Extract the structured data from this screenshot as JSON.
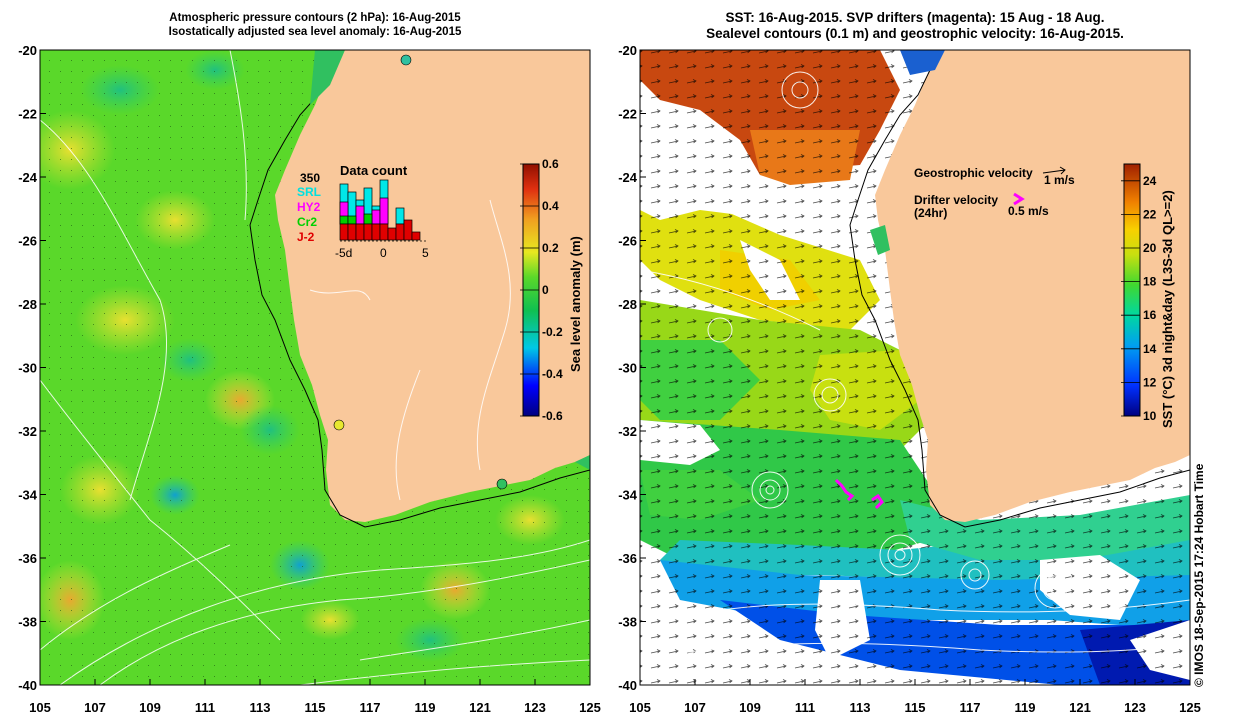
{
  "left_panel": {
    "title_line1": "Atmospheric pressure contours (2 hPa): 16-Aug-2015",
    "title_line2": "Isostatically adjusted sea level anomaly: 16-Aug-2015",
    "data_count": {
      "title": "Data count",
      "max": "350",
      "satellites": [
        "SRL",
        "HY2",
        "Cr2",
        "J-2"
      ],
      "axis_ticks": [
        "-5d",
        "0",
        "5"
      ]
    },
    "colorbar": {
      "label": "Sea level anomaly (m)",
      "ticks": [
        "0.6",
        "0.4",
        "0.2",
        "0",
        "-0.2",
        "-0.4",
        "-0.6"
      ],
      "range": [
        -0.6,
        0.6
      ]
    }
  },
  "right_panel": {
    "title_line1": "SST: 16-Aug-2015. SVP drifters (magenta): 15 Aug - 18 Aug.",
    "title_line2": "Sealevel contours (0.1 m) and geostrophic velocity: 16-Aug-2015.",
    "legend": {
      "geostrophic": "Geostrophic velocity",
      "geostrophic_scale": "1 m/s",
      "drifter": "Drifter velocity",
      "drifter_unit": "(24hr)",
      "drifter_scale": "0.5 m/s"
    },
    "colorbar": {
      "label": "SST (°C) 3d night&day (L3S-3d QL>=2)",
      "ticks": [
        "24",
        "22",
        "20",
        "18",
        "16",
        "14",
        "12",
        "10"
      ],
      "range": [
        10,
        25
      ]
    }
  },
  "axes": {
    "lon_ticks": [
      "105",
      "107",
      "109",
      "111",
      "113",
      "115",
      "117",
      "119",
      "121",
      "123",
      "125"
    ],
    "lat_ticks": [
      "-20",
      "-22",
      "-24",
      "-26",
      "-28",
      "-30",
      "-32",
      "-34",
      "-36",
      "-38",
      "-40"
    ]
  },
  "copyright": "© IMOS 18-Sep-2015 17:24 Hobart Time",
  "colors": {
    "land": "#f9c89b",
    "ocean_sla": "#4fd63a",
    "coast": "#000000",
    "drifter": "#ff00ff"
  }
}
